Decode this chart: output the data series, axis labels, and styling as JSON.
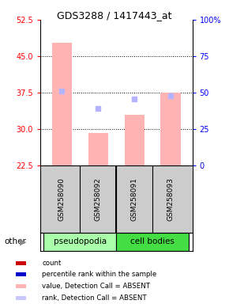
{
  "title": "GDS3288 / 1417443_at",
  "samples": [
    "GSM258090",
    "GSM258092",
    "GSM258091",
    "GSM258093"
  ],
  "groups": [
    "pseudopodia",
    "pseudopodia",
    "cell bodies",
    "cell bodies"
  ],
  "bar_values": [
    47.8,
    29.2,
    33.0,
    37.5
  ],
  "bar_bottom": 22.5,
  "rank_markers": [
    37.8,
    34.2,
    36.2,
    36.8
  ],
  "ylim_left": [
    22.5,
    52.5
  ],
  "ylim_right": [
    0,
    100
  ],
  "left_ticks": [
    22.5,
    30.0,
    37.5,
    45.0,
    52.5
  ],
  "right_ticks": [
    0,
    25,
    50,
    75,
    100
  ],
  "bar_color": "#ffb3b3",
  "rank_color": "#b3b3ff",
  "group_colors": {
    "pseudopodia": "#aaffaa",
    "cell bodies": "#44dd44"
  },
  "legend_items": [
    {
      "color": "#cc0000",
      "label": "count"
    },
    {
      "color": "#0000cc",
      "label": "percentile rank within the sample"
    },
    {
      "color": "#ffb3b3",
      "label": "value, Detection Call = ABSENT"
    },
    {
      "color": "#c8c8ff",
      "label": "rank, Detection Call = ABSENT"
    }
  ],
  "other_label": "other",
  "dotted_grid_values": [
    30.0,
    37.5,
    45.0
  ],
  "label_bg": "#cccccc",
  "fig_width": 2.9,
  "fig_height": 3.84,
  "fig_dpi": 100
}
